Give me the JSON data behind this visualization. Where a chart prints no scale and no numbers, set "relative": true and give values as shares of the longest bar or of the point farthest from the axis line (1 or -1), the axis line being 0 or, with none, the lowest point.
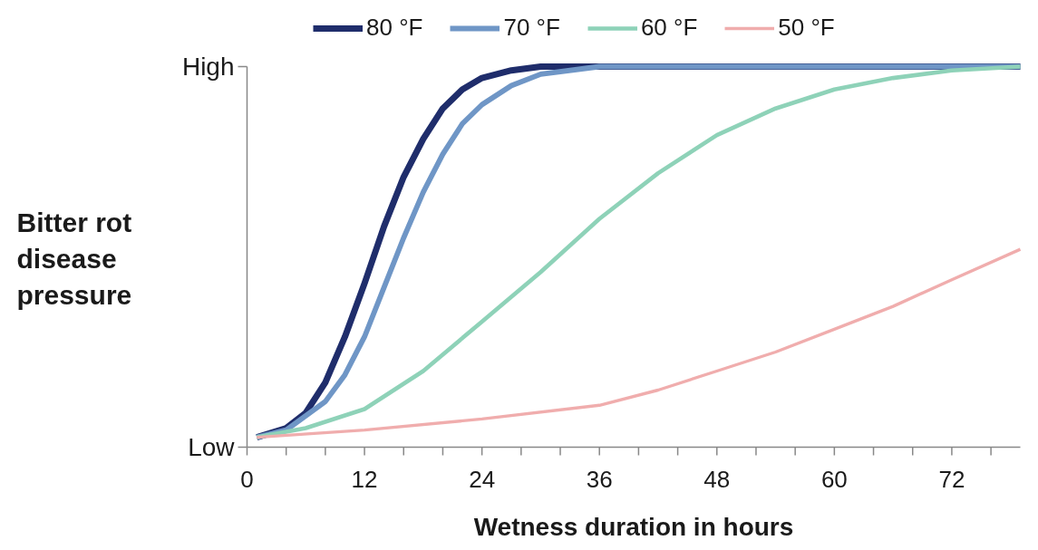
{
  "chart_data": {
    "type": "line",
    "relative": true,
    "xlabel": "Wetness duration in hours",
    "ylabel": "Bitter rot disease pressure",
    "annotations": [
      "High",
      "Low"
    ],
    "xlim": [
      0,
      79
    ],
    "xticks": [
      0,
      {
        "value": 4,
        "label": null
      },
      {
        "value": 8,
        "label": null
      },
      12,
      {
        "value": 16,
        "label": null
      },
      {
        "value": 20,
        "label": null
      },
      24,
      {
        "value": 28,
        "label": null
      },
      {
        "value": 32,
        "label": null
      },
      36,
      {
        "value": 40,
        "label": null
      },
      {
        "value": 44,
        "label": null
      },
      48,
      {
        "value": 52,
        "label": null
      },
      {
        "value": 56,
        "label": null
      },
      60,
      {
        "value": 64,
        "label": null
      },
      {
        "value": 68,
        "label": null
      },
      72,
      {
        "value": 76,
        "label": null
      }
    ],
    "legend": "top",
    "grid": false,
    "marker": "none",
    "line_style": "solid",
    "series": [
      {
        "name": "80 °F",
        "color": "#1f2d6b",
        "x": [
          1,
          4,
          6,
          8,
          10,
          12,
          14,
          16,
          18,
          20,
          22,
          24,
          27,
          30,
          79
        ],
        "values": [
          0.026,
          0.05,
          0.09,
          0.17,
          0.29,
          0.43,
          0.58,
          0.71,
          0.81,
          0.89,
          0.94,
          0.97,
          0.99,
          1.0,
          1.0
        ]
      },
      {
        "name": "70 °F",
        "color": "#6f96c6",
        "x": [
          1,
          4,
          8,
          10,
          12,
          14,
          16,
          18,
          20,
          22,
          24,
          27,
          30,
          36,
          79
        ],
        "values": [
          0.026,
          0.045,
          0.12,
          0.19,
          0.29,
          0.42,
          0.55,
          0.67,
          0.77,
          0.85,
          0.9,
          0.95,
          0.98,
          1.0,
          1.0
        ]
      },
      {
        "name": "60 °F",
        "color": "#8ed2b8",
        "x": [
          1,
          6,
          12,
          18,
          24,
          30,
          36,
          42,
          48,
          54,
          60,
          66,
          72,
          79
        ],
        "values": [
          0.026,
          0.05,
          0.1,
          0.2,
          0.33,
          0.46,
          0.6,
          0.72,
          0.82,
          0.89,
          0.94,
          0.97,
          0.99,
          1.0
        ]
      },
      {
        "name": "50 °F",
        "color": "#f0adad",
        "x": [
          1,
          12,
          24,
          36,
          42,
          48,
          54,
          60,
          66,
          72,
          79
        ],
        "values": [
          0.026,
          0.045,
          0.074,
          0.11,
          0.15,
          0.2,
          0.25,
          0.31,
          0.37,
          0.44,
          0.52
        ]
      }
    ]
  }
}
